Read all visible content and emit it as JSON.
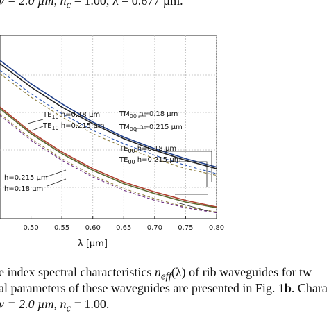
{
  "caption_top": "v = 2.0 µm, n",
  "caption_top_sub": "c",
  "caption_top_rest": " = 1.00, λ = 0.677 µm.",
  "caption_bottom_1a": "e index spectral characteristics ",
  "caption_bottom_1b": "n",
  "caption_bottom_1sub": "eff",
  "caption_bottom_1c": "(λ) of rib waveguides for tw",
  "caption_bottom_2a": "al parameters of these waveguides are presented in Fig. 1",
  "caption_bottom_2b": "b",
  "caption_bottom_2c": ". Chara",
  "caption_bottom_3a": "v = 2.0 µm, n",
  "caption_bottom_3sub": "c",
  "caption_bottom_3b": " = 1.00.",
  "chart_data": {
    "type": "line",
    "xlabel": "λ [µm]",
    "xlim": [
      0.45,
      0.8
    ],
    "xticks": [
      "0.50",
      "0.55",
      "0.60",
      "0.65",
      "0.70",
      "0.75",
      "0.80"
    ],
    "grid": true,
    "annotations": [
      {
        "mode": "TE",
        "sub": "10",
        "text": " h=0.18 µm"
      },
      {
        "mode": "TE",
        "sub": "10",
        "text": " h=0.215 µm"
      },
      {
        "mode": "TM",
        "sub": "00",
        "text": " h=0.18 µm"
      },
      {
        "mode": "TM",
        "sub": "00",
        "text": " h=0.215 µm"
      },
      {
        "mode": "TE",
        "sub": "00",
        "text": " h=0.18 µm"
      },
      {
        "mode": "TE",
        "sub": "00",
        "text": " h=0.215 µm"
      },
      {
        "mode": "",
        "sub": "",
        "text": "h=0.215 µm"
      },
      {
        "mode": "",
        "sub": "",
        "text": "h=0.18 µm"
      }
    ],
    "series": [
      {
        "color": "#1f3f8a",
        "dash": false,
        "x": [
          0.45,
          0.5,
          0.55,
          0.6,
          0.65,
          0.7,
          0.75,
          0.8
        ],
        "y": [
          0.9,
          0.76,
          0.64,
          0.53,
          0.44,
          0.37,
          0.31,
          0.26
        ]
      },
      {
        "color": "#222222",
        "dash": false,
        "x": [
          0.45,
          0.5,
          0.55,
          0.6,
          0.65,
          0.7,
          0.75,
          0.8
        ],
        "y": [
          0.88,
          0.74,
          0.62,
          0.52,
          0.43,
          0.36,
          0.3,
          0.25
        ]
      },
      {
        "color": "#2b55b0",
        "dash": true,
        "x": [
          0.45,
          0.5,
          0.55,
          0.6,
          0.65,
          0.7,
          0.75,
          0.8
        ],
        "y": [
          0.84,
          0.7,
          0.58,
          0.48,
          0.4,
          0.33,
          0.27,
          0.22
        ]
      },
      {
        "color": "#8a7a3a",
        "dash": true,
        "x": [
          0.45,
          0.5,
          0.55,
          0.6,
          0.65,
          0.7,
          0.75,
          0.8
        ],
        "y": [
          0.82,
          0.68,
          0.56,
          0.46,
          0.38,
          0.31,
          0.25,
          0.21
        ]
      },
      {
        "color": "#b04030",
        "dash": false,
        "x": [
          0.45,
          0.5,
          0.55,
          0.6,
          0.65,
          0.7,
          0.75,
          0.8
        ],
        "y": [
          0.62,
          0.47,
          0.35,
          0.25,
          0.17,
          0.11,
          0.06,
          0.02
        ]
      },
      {
        "color": "#5a6a30",
        "dash": false,
        "x": [
          0.45,
          0.5,
          0.55,
          0.6,
          0.65,
          0.7,
          0.75,
          0.8
        ],
        "y": [
          0.61,
          0.46,
          0.34,
          0.24,
          0.16,
          0.1,
          0.05,
          0.015
        ]
      },
      {
        "color": "#8a7a3a",
        "dash": true,
        "x": [
          0.45,
          0.5,
          0.55,
          0.6,
          0.65,
          0.7,
          0.75,
          0.8
        ],
        "y": [
          0.58,
          0.43,
          0.31,
          0.21,
          0.13,
          0.07,
          0.02,
          -0.01
        ]
      },
      {
        "color": "#6a2a80",
        "dash": true,
        "x": [
          0.45,
          0.5,
          0.55,
          0.6,
          0.65,
          0.7,
          0.75,
          0.8
        ],
        "y": [
          0.57,
          0.42,
          0.3,
          0.2,
          0.12,
          0.06,
          0.015,
          -0.015
        ]
      }
    ]
  }
}
